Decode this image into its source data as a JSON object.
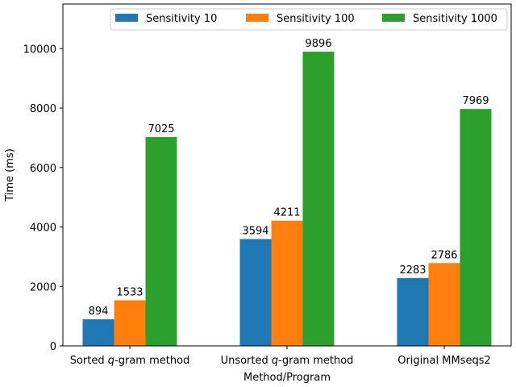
{
  "chart_data": {
    "type": "bar",
    "title": "",
    "xlabel": "Method/Program",
    "ylabel": "Time (ms)",
    "ylim": [
      0,
      11500
    ],
    "yticks": [
      0,
      2000,
      4000,
      6000,
      8000,
      10000
    ],
    "grid": false,
    "legend_position": "top-right",
    "categories": [
      {
        "pre": "Sorted ",
        "q": "q",
        "post": "-gram method"
      },
      {
        "pre": "Unsorted ",
        "q": "q",
        "post": "-gram method"
      },
      {
        "pre": "Original MMseqs2",
        "q": "",
        "post": ""
      }
    ],
    "series": [
      {
        "name": "Sensitivity 10",
        "color": "#1f77b4",
        "values": [
          894,
          3594,
          2283
        ]
      },
      {
        "name": "Sensitivity 100",
        "color": "#ff7f0e",
        "values": [
          1533,
          4211,
          2786
        ]
      },
      {
        "name": "Sensitivity 1000",
        "color": "#2ca02c",
        "values": [
          7025,
          9896,
          7969
        ]
      }
    ]
  }
}
